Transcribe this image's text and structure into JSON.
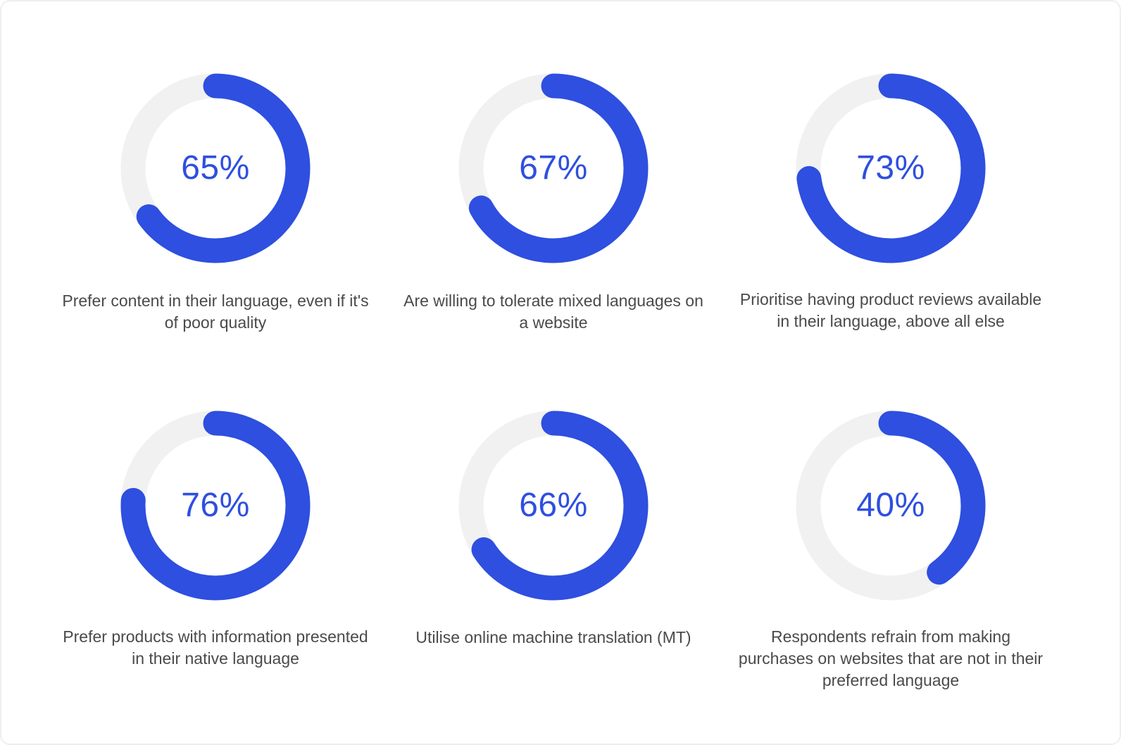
{
  "chart_data": {
    "type": "donut",
    "colors": {
      "fill": "#2e4fdf",
      "track": "#f1f1f2",
      "value_text": "#2e4fdf",
      "caption_text": "#4a4a4a"
    },
    "items": [
      {
        "value": 65,
        "label": "65%",
        "caption": "Prefer content in their language, even if it's of poor quality"
      },
      {
        "value": 67,
        "label": "67%",
        "caption": "Are willing to tolerate mixed languages on a website"
      },
      {
        "value": 73,
        "label": "73%",
        "caption": "Prioritise having product reviews available in their language, above all else"
      },
      {
        "value": 76,
        "label": "76%",
        "caption": "Prefer products with information presented in their native language"
      },
      {
        "value": 66,
        "label": "66%",
        "caption": "Utilise online machine translation (MT)"
      },
      {
        "value": 40,
        "label": "40%",
        "caption": "Respondents refrain from making purchases on websites that are not in their preferred language"
      }
    ]
  }
}
